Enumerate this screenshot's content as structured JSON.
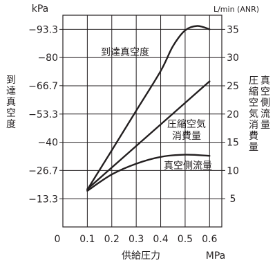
{
  "chart_data": {
    "type": "line",
    "left_axis": {
      "unit": "kPa",
      "title": "到達真空度",
      "ticks": [
        -93.3,
        -80,
        -66.7,
        -53.3,
        -40,
        -26.7,
        -13.3,
        0
      ],
      "tick_labels": [
        "−93.3",
        "−80",
        "−66.7",
        "−53.3",
        "−40",
        "−26.7",
        "−13.3",
        "0"
      ]
    },
    "right_axis": {
      "unit": "L/min (ANR)",
      "title_lines": [
        "真空側流量",
        "圧縮空気消費量"
      ],
      "ylim": [
        0,
        37.5
      ],
      "ticks": [
        5,
        10,
        15,
        20,
        25,
        30,
        35
      ]
    },
    "x_axis": {
      "title": "供給圧力",
      "unit": "MPa",
      "origin_label": "0",
      "ticks": [
        0.1,
        0.2,
        0.3,
        0.4,
        0.5,
        0.6
      ],
      "xlim": [
        0,
        0.65
      ]
    },
    "grid": true,
    "series": [
      {
        "name": "到達真空度",
        "label_lines": [
          "到達真空度"
        ],
        "axis": "left",
        "x": [
          0.1,
          0.2,
          0.3,
          0.4,
          0.45,
          0.5,
          0.55,
          0.6
        ],
        "y": [
          -17.6,
          -36.2,
          -54.9,
          -73.6,
          -85.3,
          -92.8,
          -94.9,
          -93.3
        ]
      },
      {
        "name": "圧縮空気消費量",
        "label_lines": [
          "圧縮空気",
          "消費量"
        ],
        "axis": "right",
        "x": [
          0.1,
          0.6
        ],
        "y": [
          6.7,
          25.8
        ]
      },
      {
        "name": "真空側流量",
        "label_lines": [
          "真空側流量"
        ],
        "axis": "right",
        "x": [
          0.1,
          0.2,
          0.3,
          0.4,
          0.5,
          0.6
        ],
        "y": [
          6.4,
          9.3,
          11.2,
          12.4,
          12.8,
          12.6
        ]
      }
    ]
  }
}
